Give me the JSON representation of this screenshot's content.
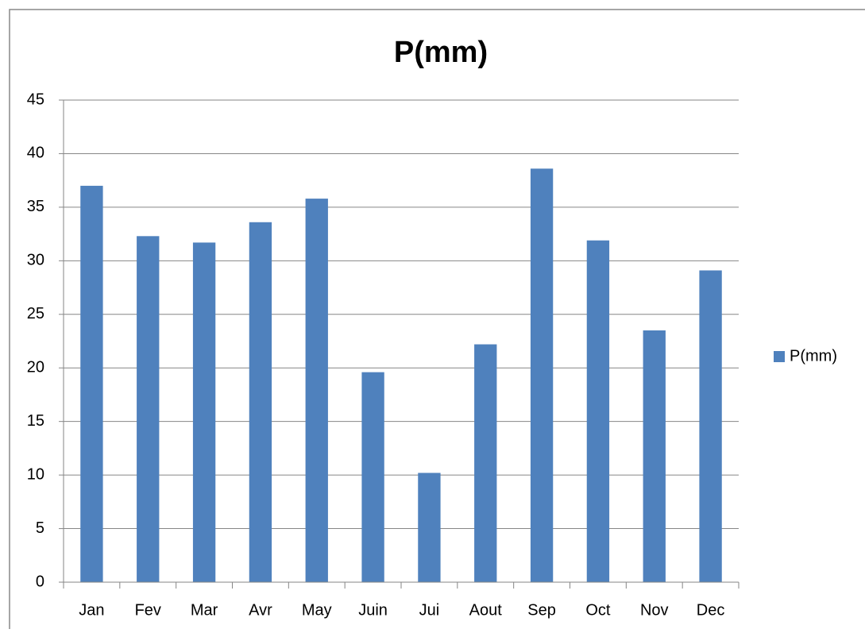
{
  "chart_data": {
    "type": "bar",
    "title": "P(mm)",
    "categories": [
      "Jan",
      "Fev",
      "Mar",
      "Avr",
      "May",
      "Juin",
      "Jui",
      "Aout",
      "Sep",
      "Oct",
      "Nov",
      "Dec"
    ],
    "series": [
      {
        "name": "P(mm)",
        "color": "#4f81bd",
        "values": [
          37.0,
          32.3,
          31.7,
          33.6,
          35.8,
          19.6,
          10.2,
          22.2,
          38.6,
          31.9,
          23.5,
          29.1
        ]
      }
    ],
    "ylim": [
      0,
      45
    ],
    "yticks": [
      0,
      5,
      10,
      15,
      20,
      25,
      30,
      35,
      40,
      45
    ],
    "grid": true,
    "legend": "right"
  }
}
